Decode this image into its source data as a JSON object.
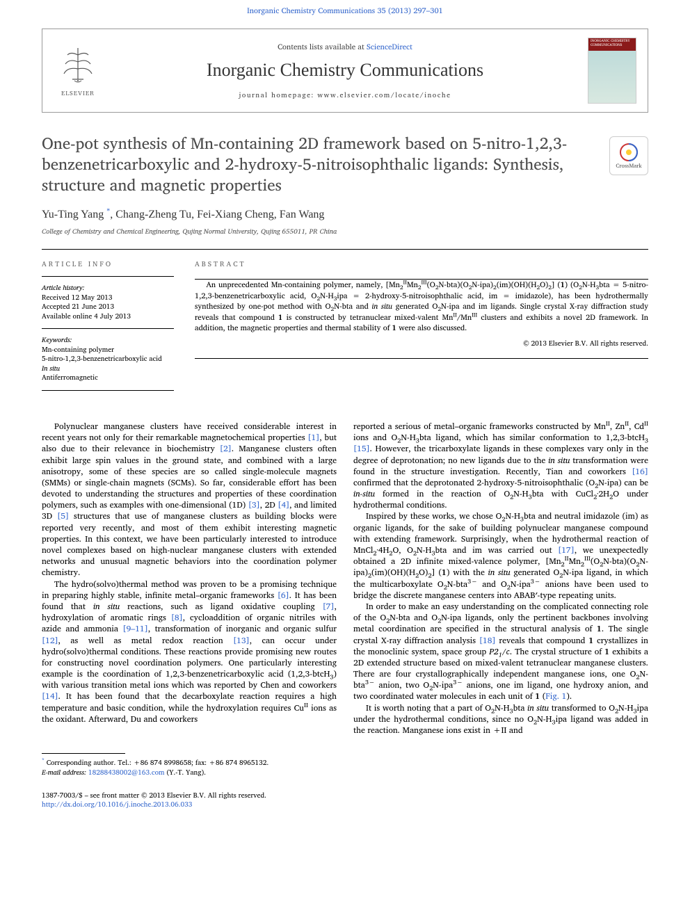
{
  "header": {
    "citation": "Inorganic Chemistry Communications 35 (2013) 297–301",
    "contents_prefix": "Contents lists available at ",
    "contents_link": "ScienceDirect",
    "journal_name": "Inorganic Chemistry Communications",
    "homepage_label": "journal homepage: www.elsevier.com/locate/inoche",
    "publisher": "ELSEVIER",
    "cover_title": "INORGANIC CHEMISTRY COMMUNICATIONS",
    "crossmark": "CrossMark"
  },
  "article": {
    "title": "One-pot synthesis of Mn-containing 2D framework based on 5-nitro-1,2,3-benzenetricarboxylic and 2-hydroxy-5-nitroisophthalic ligands: Synthesis, structure and magnetic properties",
    "authors_html": "Yu-Ting Yang <sup class='corr-star'>*</sup>, Chang-Zheng Tu, Fei-Xiang Cheng, Fan Wang",
    "affiliation": "College of Chemistry and Chemical Engineering, Qujing Normal University, Qujing 655011, PR China"
  },
  "info": {
    "heading": "ARTICLE INFO",
    "history_label": "Article history:",
    "received": "Received 12 May 2013",
    "accepted": "Accepted 21 June 2013",
    "online": "Available online 4 July 2013",
    "keywords_label": "Keywords:",
    "keywords": [
      "Mn-containing polymer",
      "5-nitro-1,2,3-benzenetricarboxylic acid",
      "In situ",
      "Antiferromagnetic"
    ]
  },
  "abstract": {
    "heading": "ABSTRACT",
    "body_html": "An unprecedented Mn-containing polymer, namely, [Mn<sub>2</sub><sup>II</sup>Mn<sub>2</sub><sup>III</sup>(O<sub>2</sub>N-bta)(O<sub>2</sub>N-ipa)<sub>2</sub>(im)(OH)(H<sub>2</sub>O)<sub>2</sub>] (<b>1</b>) (O<sub>2</sub>N-H<sub>3</sub>bta = 5-nitro-1,2,3-benzenetricarboxylic acid, O<sub>2</sub>N-H<sub>3</sub>ipa = 2-hydroxy-5-nitroisophthalic acid, im = imidazole), has been hydrothermally synthesized by one-pot method with O<sub>2</sub>N-bta and <i>in situ</i> generated O<sub>2</sub>N-ipa and im ligands. Single crystal X-ray diffraction study reveals that compound <b>1</b> is constructed by tetranuclear mixed-valent Mn<sup>II</sup>/Mn<sup>III</sup> clusters and exhibits a novel 2D framework. In addition, the magnetic properties and thermal stability of <b>1</b> were also discussed.",
    "copyright": "© 2013 Elsevier B.V. All rights reserved."
  },
  "body": {
    "col1": [
      "Polynuclear manganese clusters have received considerable interest in recent years not only for their remarkable magnetochemical properties <span class='ref-link'>[1]</span>, but also due to their relevance in biochemistry <span class='ref-link'>[2]</span>. Manganese clusters often exhibit large spin values in the ground state, and combined with a large anisotropy, some of these species are so called single-molecule magnets (SMMs) or single-chain magnets (SCMs). So far, considerable effort has been devoted to understanding the structures and properties of these coordination polymers, such as examples with one-dimensional (1D) <span class='ref-link'>[3]</span>, 2D <span class='ref-link'>[4]</span>, and limited 3D <span class='ref-link'>[5]</span> structures that use of manganese clusters as building blocks were reported very recently, and most of them exhibit interesting magnetic properties. In this context, we have been particularly interested to introduce novel complexes based on high-nuclear manganese clusters with extended networks and unusual magnetic behaviors into the coordination polymer chemistry.",
      "The hydro(solvo)thermal method was proven to be a promising technique in preparing highly stable, infinite metal–organic frameworks <span class='ref-link'>[6]</span>. It has been found that <i>in situ</i> reactions, such as ligand oxidative coupling <span class='ref-link'>[7]</span>, hydroxylation of aromatic rings <span class='ref-link'>[8]</span>, cycloaddition of organic nitriles with azide and ammonia <span class='ref-link'>[9–11]</span>, transformation of inorganic and organic sulfur <span class='ref-link'>[12]</span>, as well as metal redox reaction <span class='ref-link'>[13]</span>, can occur under hydro(solvo)thermal conditions. These reactions provide promising new routes for constructing novel coordination polymers. One particularly interesting example is the coordination of 1,2,3-benzenetricarboxylic acid (1,2,3-btcH<sub>3</sub>) with various transition metal ions which was reported by Chen and coworkers <span class='ref-link'>[14]</span>. It has been found that the decarboxylate reaction requires a high temperature and basic condition, while the hydroxylation requires Cu<sup>II</sup> ions as the oxidant. Afterward, Du and coworkers"
    ],
    "col2": [
      "reported a serious of metal–organic frameworks constructed by Mn<sup>II</sup>, Zn<sup>II</sup>, Cd<sup>II</sup> ions and O<sub>2</sub>N-H<sub>3</sub>bta ligand, which has similar conformation to 1,2,3-btcH<sub>3</sub> <span class='ref-link'>[15]</span>. However, the tricarboxylate ligands in these complexes vary only in the degree of deprotonation; no new ligands due to the <i>in situ</i> transformation were found in the structure investigation. Recently, Tian and coworkers <span class='ref-link'>[16]</span> confirmed that the deprotonated 2-hydroxy-5-nitroisophthalic (O<sub>2</sub>N-ipa) can be <i>in-situ</i> formed in the reaction of O<sub>2</sub>N-H<sub>3</sub>bta with CuCl<sub>2</sub>·2H<sub>2</sub>O under hydrothermal conditions.",
      "Inspired by these works, we chose O<sub>2</sub>N-H<sub>3</sub>bta and neutral imidazole (im) as organic ligands, for the sake of building polynuclear manganese compound with extending framework. Surprisingly, when the hydrothermal reaction of MnCl<sub>2</sub>·4H<sub>2</sub>O, O<sub>2</sub>N-H<sub>3</sub>bta and im was carried out <span class='ref-link'>[17]</span>, we unexpectedly obtained a 2D infinite mixed-valence polymer, [Mn<sub>2</sub><sup>II</sup>Mn<sub>2</sub><sup>III</sup>(O<sub>2</sub>N-bta)(O<sub>2</sub>N-ipa)<sub>2</sub>(im)(OH)(H<sub>2</sub>O)<sub>2</sub>] (<b>1</b>) with the <i>in situ</i> generated O<sub>2</sub>N-ipa ligand, in which the multicarboxylate O<sub>2</sub>N-bta<sup>3−</sup> and O<sub>2</sub>N-ipa<sup>3−</sup> anions have been used to bridge the discrete manganese centers into ABAB′-type repeating units.",
      "In order to make an easy understanding on the complicated connecting role of the O<sub>2</sub>N-bta and O<sub>2</sub>N-ipa ligands, only the pertinent backbones involving metal coordination are specified in the structural analysis of <b>1</b>. The single crystal X-ray diffraction analysis <span class='ref-link'>[18]</span> reveals that compound <b>1</b> crystallizes in the monoclinic system, space group <i>P2<sub>1</sub>/c</i>. The crystal structure of <b>1</b> exhibits a 2D extended structure based on mixed-valent tetranuclear manganese clusters. There are four crystallographically independent manganese ions, one O<sub>2</sub>N-bta<sup>3−</sup> anion, two O<sub>2</sub>N-ipa<sup>3−</sup> anions, one im ligand, one hydroxy anion, and two coordinated water molecules in each unit of <b>1</b> (<span class='ref-link'>Fig. 1</span>).",
      "It is worth noting that a part of O<sub>2</sub>N-H<sub>3</sub>bta <i>in situ</i> transformed to O<sub>2</sub>N-H<sub>3</sub>ipa under the hydrothermal conditions, since no O<sub>2</sub>N-H<sub>3</sub>ipa ligand was added in the reaction. Manganese ions exist in +II and"
    ]
  },
  "footer": {
    "corr_html": "Corresponding author. Tel.: +86 874 8998658; fax: +86 874 8965132.",
    "email_label": "E-mail address:",
    "email": "18288438002@163.com",
    "email_who": " (Y.-T. Yang).",
    "issn": "1387-7003/$ – see front matter © 2013 Elsevier B.V. All rights reserved.",
    "doi": "http://dx.doi.org/10.1016/j.inoche.2013.06.033"
  },
  "colors": {
    "link": "#3366cc",
    "text": "#000000",
    "gray_heading": "#666666",
    "cover_bar": "#8b1a1a"
  }
}
